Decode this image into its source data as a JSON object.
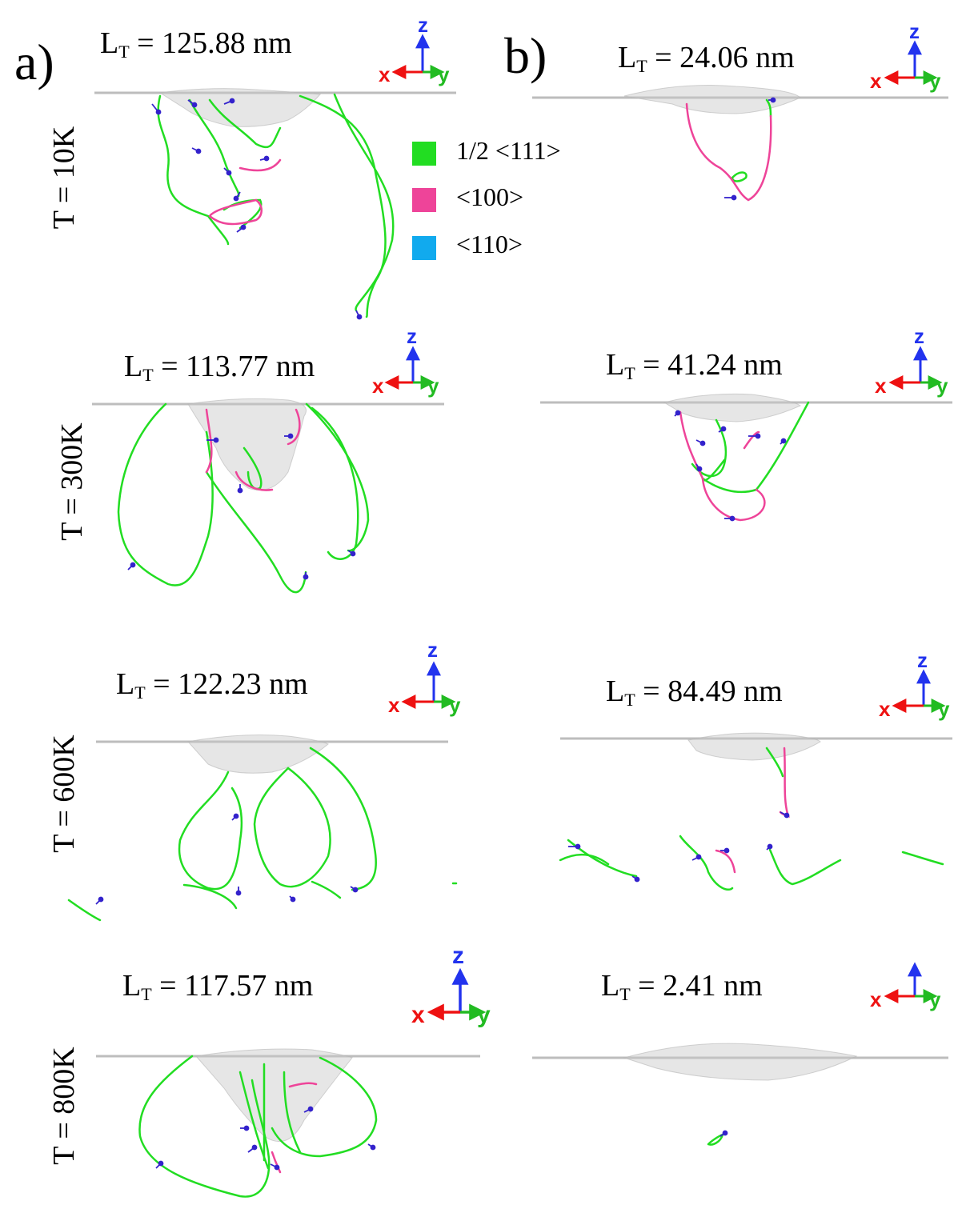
{
  "panels": {
    "a": "a)",
    "b": "b)"
  },
  "rows": [
    {
      "temp": "T = 10K",
      "lt_a": "125.88 nm",
      "lt_b": "24.06 nm"
    },
    {
      "temp": "T = 300K",
      "lt_a": "113.77 nm",
      "lt_b": "41.24 nm"
    },
    {
      "temp": "T = 600K",
      "lt_a": "122.23 nm",
      "lt_b": "84.49 nm"
    },
    {
      "temp": "T = 800K",
      "lt_a": "117.57 nm",
      "lt_b": "2.41 nm"
    }
  ],
  "lt_prefix": "L",
  "lt_sub": "T",
  "lt_eq": " = ",
  "axes": {
    "x": "x",
    "y": "y",
    "z": "z"
  },
  "legend": [
    {
      "label": "1/2 <111>",
      "color": "#22dd22"
    },
    {
      "label": "<100>",
      "color": "#ee4499"
    },
    {
      "label": "<110>",
      "color": "#11aaee"
    }
  ],
  "colors": {
    "axis_x": "#ee1111",
    "axis_y": "#22bb22",
    "axis_z": "#2233ee",
    "arrow": "#3322cc"
  }
}
